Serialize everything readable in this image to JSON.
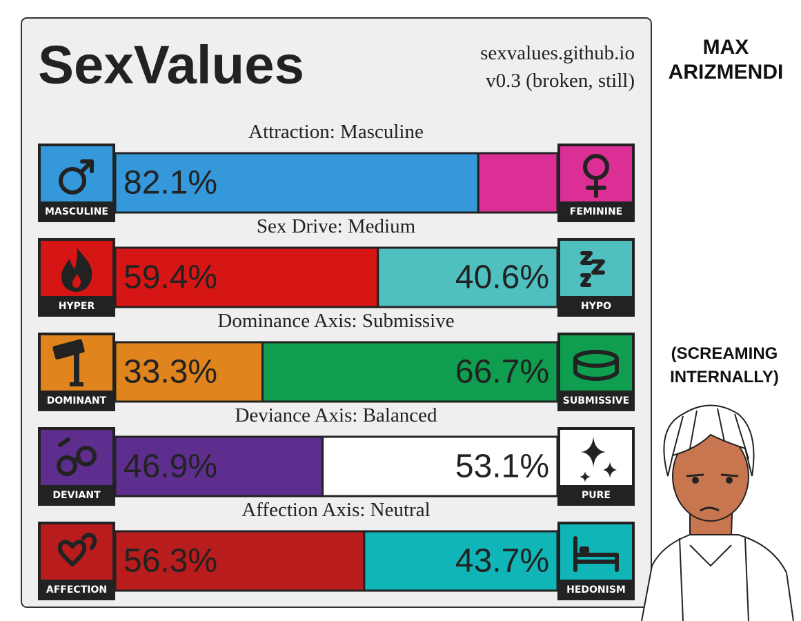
{
  "header": {
    "title": "SexValues",
    "site": "sexvalues.github.io",
    "version": "v0.3 (broken, still)"
  },
  "axes": [
    {
      "title": "Attraction: Masculine",
      "left": {
        "label": "MASCULINE",
        "color": "#3498db",
        "value": 82.1,
        "value_label": "82.1%"
      },
      "right": {
        "label": "FEMININE",
        "color": "#db2f95",
        "value": 17.9,
        "value_label": null
      }
    },
    {
      "title": "Sex Drive: Medium",
      "left": {
        "label": "HYPER",
        "color": "#d61515",
        "value": 59.4,
        "value_label": "59.4%"
      },
      "right": {
        "label": "HYPO",
        "color": "#4fbfc0",
        "value": 40.6,
        "value_label": "40.6%"
      }
    },
    {
      "title": "Dominance Axis: Submissive",
      "left": {
        "label": "DOMINANT",
        "color": "#e0851e",
        "value": 33.3,
        "value_label": "33.3%"
      },
      "right": {
        "label": "SUBMISSIVE",
        "color": "#0f9d4f",
        "value": 66.7,
        "value_label": "66.7%"
      }
    },
    {
      "title": "Deviance Axis: Balanced",
      "left": {
        "label": "DEVIANT",
        "color": "#5e2e8e",
        "value": 46.9,
        "value_label": "46.9%"
      },
      "right": {
        "label": "PURE",
        "color": "#ffffff",
        "value": 53.1,
        "value_label": "53.1%"
      }
    },
    {
      "title": "Affection Axis: Neutral",
      "left": {
        "label": "AFFECTION",
        "color": "#b81c1c",
        "value": 56.3,
        "value_label": "56.3%"
      },
      "right": {
        "label": "HEDONISM",
        "color": "#10b5b8",
        "value": 43.7,
        "value_label": "43.7%"
      }
    }
  ],
  "side": {
    "name_lines": [
      "MAX",
      "ARIZMENDI"
    ],
    "caption_lines": [
      "(SCREAMING",
      "INTERNALLY)"
    ]
  }
}
